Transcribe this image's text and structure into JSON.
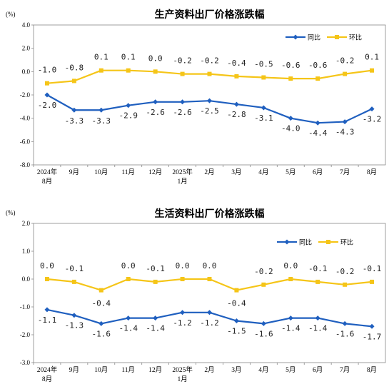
{
  "chart_data": [
    {
      "type": "line",
      "title": "生产资料出厂价格涨跌幅",
      "unit": "(%)",
      "ylim": [
        -8.0,
        4.0
      ],
      "yticks": [
        "4.0",
        "2.0",
        "0.0",
        "-2.0",
        "-4.0",
        "-6.0",
        "-8.0"
      ],
      "ytick_values": [
        4,
        2,
        0,
        -2,
        -4,
        -6,
        -8
      ],
      "categories": [
        [
          "2024年",
          "8月"
        ],
        [
          "9月"
        ],
        [
          "10月"
        ],
        [
          "11月"
        ],
        [
          "12月"
        ],
        [
          "2025年",
          "1月"
        ],
        [
          "2月"
        ],
        [
          "3月"
        ],
        [
          "4月"
        ],
        [
          "5月"
        ],
        [
          "6月"
        ],
        [
          "7月"
        ],
        [
          "8月"
        ]
      ],
      "legend_position": "top-right",
      "grid": false,
      "series": [
        {
          "name": "同比",
          "color": "#1f5fbf",
          "marker": "diamond",
          "values": [
            -2.0,
            -3.3,
            -3.3,
            -2.9,
            -2.6,
            -2.6,
            -2.5,
            -2.8,
            -3.1,
            -4.0,
            -4.4,
            -4.3,
            -3.2
          ],
          "labels": [
            "-2.0",
            "-3.3",
            "-3.3",
            "-2.9",
            "-2.6",
            "-2.6",
            "-2.5",
            "-2.8",
            "-3.1",
            "-4.0",
            "-4.4",
            "-4.3",
            "-3.2"
          ]
        },
        {
          "name": "环比",
          "color": "#f5c518",
          "marker": "square",
          "values": [
            -1.0,
            -0.8,
            0.1,
            0.1,
            0.0,
            -0.2,
            -0.2,
            -0.4,
            -0.5,
            -0.6,
            -0.6,
            -0.2,
            0.1
          ],
          "labels": [
            "-1.0",
            "-0.8",
            "0.1",
            "0.1",
            "0.0",
            "-0.2",
            "-0.2",
            "-0.4",
            "-0.5",
            "-0.6",
            "-0.6",
            "-0.2",
            "0.1"
          ]
        }
      ]
    },
    {
      "type": "line",
      "title": "生活资料出厂价格涨跌幅",
      "unit": "(%)",
      "ylim": [
        -3.0,
        2.0
      ],
      "yticks": [
        "2.0",
        "1.0",
        "0.0",
        "-1.0",
        "-2.0",
        "-3.0"
      ],
      "ytick_values": [
        2,
        1,
        0,
        -1,
        -2,
        -3
      ],
      "categories": [
        [
          "2024年",
          "8月"
        ],
        [
          "9月"
        ],
        [
          "10月"
        ],
        [
          "11月"
        ],
        [
          "12月"
        ],
        [
          "2025年",
          "1月"
        ],
        [
          "2月"
        ],
        [
          "3月"
        ],
        [
          "4月"
        ],
        [
          "5月"
        ],
        [
          "6月"
        ],
        [
          "7月"
        ],
        [
          "8月"
        ]
      ],
      "legend_position": "top-right",
      "grid": false,
      "series": [
        {
          "name": "同比",
          "color": "#1f5fbf",
          "marker": "diamond",
          "values": [
            -1.1,
            -1.3,
            -1.6,
            -1.4,
            -1.4,
            -1.2,
            -1.2,
            -1.5,
            -1.6,
            -1.4,
            -1.4,
            -1.6,
            -1.7
          ],
          "labels": [
            "-1.1",
            "-1.3",
            "-1.6",
            "-1.4",
            "-1.4",
            "-1.2",
            "-1.2",
            "-1.5",
            "-1.6",
            "-1.4",
            "-1.4",
            "-1.6",
            "-1.7"
          ]
        },
        {
          "name": "环比",
          "color": "#f5c518",
          "marker": "square",
          "values": [
            0.0,
            -0.1,
            -0.4,
            0.0,
            -0.1,
            0.0,
            0.0,
            -0.4,
            -0.2,
            0.0,
            -0.1,
            -0.2,
            -0.1
          ],
          "labels": [
            "0.0",
            "-0.1",
            "-0.4",
            "0.0",
            "-0.1",
            "0.0",
            "0.0",
            "-0.4",
            "-0.2",
            "0.0",
            "-0.1",
            "-0.2",
            "-0.1"
          ]
        }
      ]
    }
  ]
}
